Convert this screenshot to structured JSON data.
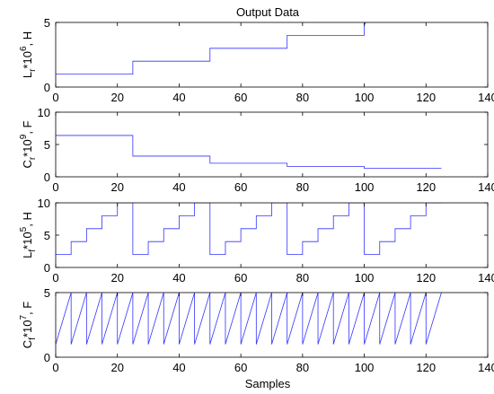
{
  "figure": {
    "title": "Output Data",
    "xlabel": "Samples"
  },
  "colors": {
    "line": "#3333ff",
    "axes": "#000000",
    "background": "#ffffff"
  },
  "chart_data": [
    {
      "type": "line",
      "ylabel_main": "L",
      "ylabel_sub": "r",
      "ylabel_mid": "*10",
      "ylabel_sup": "6",
      "ylabel_unit": ", H",
      "xlim": [
        0,
        140
      ],
      "ylim": [
        0,
        5
      ],
      "xticks": [
        "0",
        "20",
        "40",
        "60",
        "80",
        "100",
        "120",
        "140"
      ],
      "yticks": [
        "0",
        "5"
      ],
      "grid": false,
      "series": [
        {
          "x": [
            0,
            25,
            25,
            50,
            50,
            75,
            75,
            100,
            100,
            101
          ],
          "y": [
            1,
            1,
            2,
            2,
            3,
            3,
            4,
            4,
            4.8,
            5.2
          ]
        }
      ]
    },
    {
      "type": "line",
      "ylabel_main": "C",
      "ylabel_sub": "r",
      "ylabel_mid": "*10",
      "ylabel_sup": "9",
      "ylabel_unit": ", F",
      "xlim": [
        0,
        140
      ],
      "ylim": [
        0,
        10
      ],
      "xticks": [
        "0",
        "20",
        "40",
        "60",
        "80",
        "100",
        "120",
        "140"
      ],
      "yticks": [
        "0",
        "5",
        "10"
      ],
      "grid": false,
      "series": [
        {
          "x": [
            0,
            25,
            25,
            50,
            50,
            75,
            75,
            100,
            100,
            125
          ],
          "y": [
            6.4,
            6.4,
            3.2,
            3.2,
            2.1,
            2.1,
            1.6,
            1.6,
            1.3,
            1.3
          ]
        }
      ]
    },
    {
      "type": "line",
      "ylabel_main": "L",
      "ylabel_sub": "f",
      "ylabel_mid": "*10",
      "ylabel_sup": "5",
      "ylabel_unit": ", H",
      "xlim": [
        0,
        140
      ],
      "ylim": [
        0,
        10
      ],
      "xticks": [
        "0",
        "20",
        "40",
        "60",
        "80",
        "100",
        "120",
        "140"
      ],
      "yticks": [
        "0",
        "5",
        "10"
      ],
      "grid": false,
      "series": [
        {
          "x": [
            0,
            5,
            5,
            10,
            10,
            15,
            15,
            20,
            20,
            25,
            25,
            30,
            30,
            35,
            35,
            40,
            40,
            45,
            45,
            50,
            50,
            55,
            55,
            60,
            60,
            65,
            65,
            70,
            70,
            75,
            75,
            80,
            80,
            85,
            85,
            90,
            90,
            95,
            95,
            100,
            100,
            105,
            105,
            110,
            110,
            115,
            115,
            120,
            120,
            125
          ],
          "y": [
            2,
            2,
            4,
            4,
            6,
            6,
            8,
            8,
            10,
            10,
            2,
            2,
            4,
            4,
            6,
            6,
            8,
            8,
            10,
            10,
            2,
            2,
            4,
            4,
            6,
            6,
            8,
            8,
            10,
            10,
            2,
            2,
            4,
            4,
            6,
            6,
            8,
            8,
            10,
            10,
            2,
            2,
            4,
            4,
            6,
            6,
            8,
            8,
            10,
            10
          ]
        }
      ]
    },
    {
      "type": "line",
      "ylabel_main": "C",
      "ylabel_sub": "f",
      "ylabel_mid": "*10",
      "ylabel_sup": "7",
      "ylabel_unit": ", F",
      "xlim": [
        0,
        140
      ],
      "ylim": [
        0,
        5
      ],
      "xticks": [
        "0",
        "20",
        "40",
        "60",
        "80",
        "100",
        "120",
        "140"
      ],
      "yticks": [
        "0",
        "5"
      ],
      "grid": false,
      "series": [
        {
          "x": [
            0,
            5,
            5,
            10,
            10,
            15,
            15,
            20,
            20,
            25,
            25,
            30,
            30,
            35,
            35,
            40,
            40,
            45,
            45,
            50,
            50,
            55,
            55,
            60,
            60,
            65,
            65,
            70,
            70,
            75,
            75,
            80,
            80,
            85,
            85,
            90,
            90,
            95,
            95,
            100,
            100,
            105,
            105,
            110,
            110,
            115,
            115,
            120,
            120,
            125
          ],
          "y": [
            1,
            5,
            1,
            5,
            1,
            5,
            1,
            5,
            1,
            5,
            1,
            5,
            1,
            5,
            1,
            5,
            1,
            5,
            1,
            5,
            1,
            5,
            1,
            5,
            1,
            5,
            1,
            5,
            1,
            5,
            1,
            5,
            1,
            5,
            1,
            5,
            1,
            5,
            1,
            5,
            1,
            5,
            1,
            5,
            1,
            5,
            1,
            5,
            1,
            5
          ]
        }
      ]
    }
  ]
}
